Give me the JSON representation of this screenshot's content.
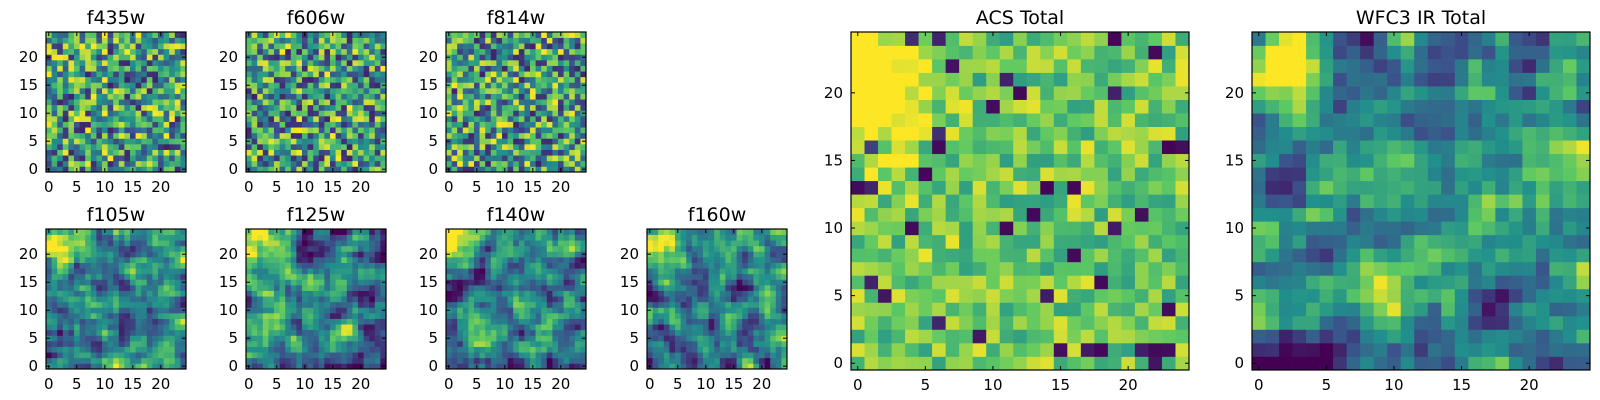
{
  "figure": {
    "colormap": "viridis",
    "colors": [
      "#440154",
      "#3b528b",
      "#21918c",
      "#5ec962",
      "#fde725"
    ]
  },
  "chart_data": [
    {
      "type": "heatmap",
      "title": "f435w",
      "grid_size": [
        25,
        25
      ],
      "value_range": [
        0,
        1
      ],
      "xlim": [
        -0.5,
        24.5
      ],
      "ylim": [
        -0.5,
        24.5
      ],
      "xticks": [
        0,
        5,
        10,
        15,
        20
      ],
      "yticks": [
        0,
        5,
        10,
        15,
        20
      ],
      "xtick_labels": [
        "0",
        "5",
        "10",
        "15",
        "20"
      ],
      "ytick_labels": [
        "0",
        "5",
        "10",
        "15",
        "20"
      ],
      "hotspot": null,
      "texture": "uniform-noise",
      "noise_seed": 11,
      "grid": false
    },
    {
      "type": "heatmap",
      "title": "f606w",
      "grid_size": [
        25,
        25
      ],
      "value_range": [
        0,
        1
      ],
      "xlim": [
        -0.5,
        24.5
      ],
      "ylim": [
        -0.5,
        24.5
      ],
      "xticks": [
        0,
        5,
        10,
        15,
        20
      ],
      "yticks": [
        0,
        5,
        10,
        15,
        20
      ],
      "xtick_labels": [
        "0",
        "5",
        "10",
        "15",
        "20"
      ],
      "ytick_labels": [
        "0",
        "5",
        "10",
        "15",
        "20"
      ],
      "hotspot": null,
      "texture": "uniform-noise",
      "noise_seed": 23,
      "grid": false
    },
    {
      "type": "heatmap",
      "title": "f814w",
      "grid_size": [
        25,
        25
      ],
      "value_range": [
        0,
        1
      ],
      "xlim": [
        -0.5,
        24.5
      ],
      "ylim": [
        -0.5,
        24.5
      ],
      "xticks": [
        0,
        5,
        10,
        15,
        20
      ],
      "yticks": [
        0,
        5,
        10,
        15,
        20
      ],
      "xtick_labels": [
        "0",
        "5",
        "10",
        "15",
        "20"
      ],
      "ytick_labels": [
        "0",
        "5",
        "10",
        "15",
        "20"
      ],
      "hotspot": null,
      "texture": "uniform-noise",
      "noise_seed": 37,
      "grid": false
    },
    {
      "type": "heatmap",
      "title": "f105w",
      "grid_size": [
        25,
        25
      ],
      "value_range": [
        0,
        1
      ],
      "xlim": [
        -0.5,
        24.5
      ],
      "ylim": [
        -0.5,
        24.5
      ],
      "xticks": [
        0,
        5,
        10,
        15,
        20
      ],
      "yticks": [
        0,
        5,
        10,
        15,
        20
      ],
      "xtick_labels": [
        "0",
        "5",
        "10",
        "15",
        "20"
      ],
      "ytick_labels": [
        "0",
        "5",
        "10",
        "15",
        "20"
      ],
      "hotspot": [
        1,
        22
      ],
      "texture": "smooth-noise",
      "noise_seed": 41,
      "grid": false
    },
    {
      "type": "heatmap",
      "title": "f125w",
      "grid_size": [
        25,
        25
      ],
      "value_range": [
        0,
        1
      ],
      "xlim": [
        -0.5,
        24.5
      ],
      "ylim": [
        -0.5,
        24.5
      ],
      "xticks": [
        0,
        5,
        10,
        15,
        20
      ],
      "yticks": [
        0,
        5,
        10,
        15,
        20
      ],
      "xtick_labels": [
        "0",
        "5",
        "10",
        "15",
        "20"
      ],
      "ytick_labels": [
        "0",
        "5",
        "10",
        "15",
        "20"
      ],
      "hotspot": [
        1,
        22
      ],
      "texture": "smooth-noise",
      "noise_seed": 53,
      "grid": false
    },
    {
      "type": "heatmap",
      "title": "f140w",
      "grid_size": [
        25,
        25
      ],
      "value_range": [
        0,
        1
      ],
      "xlim": [
        -0.5,
        24.5
      ],
      "ylim": [
        -0.5,
        24.5
      ],
      "xticks": [
        0,
        5,
        10,
        15,
        20
      ],
      "yticks": [
        0,
        5,
        10,
        15,
        20
      ],
      "xtick_labels": [
        "0",
        "5",
        "10",
        "15",
        "20"
      ],
      "ytick_labels": [
        "0",
        "5",
        "10",
        "15",
        "20"
      ],
      "hotspot": [
        1,
        22
      ],
      "texture": "smooth-noise",
      "noise_seed": 67,
      "grid": false
    },
    {
      "type": "heatmap",
      "title": "f160w",
      "grid_size": [
        25,
        25
      ],
      "value_range": [
        0,
        1
      ],
      "xlim": [
        -0.5,
        24.5
      ],
      "ylim": [
        -0.5,
        24.5
      ],
      "xticks": [
        0,
        5,
        10,
        15,
        20
      ],
      "yticks": [
        0,
        5,
        10,
        15,
        20
      ],
      "xtick_labels": [
        "0",
        "5",
        "10",
        "15",
        "20"
      ],
      "ytick_labels": [
        "0",
        "5",
        "10",
        "15",
        "20"
      ],
      "hotspot": [
        1,
        22
      ],
      "texture": "smooth-noise",
      "noise_seed": 79,
      "grid": false
    },
    {
      "type": "heatmap",
      "title": "ACS Total",
      "grid_size": [
        25,
        25
      ],
      "value_range": [
        0,
        1
      ],
      "xlim": [
        -0.5,
        24.5
      ],
      "ylim": [
        -0.5,
        24.5
      ],
      "xticks": [
        0,
        5,
        10,
        15,
        20
      ],
      "yticks": [
        0,
        5,
        10,
        15,
        20
      ],
      "xtick_labels": [
        "0",
        "5",
        "10",
        "15",
        "20"
      ],
      "ytick_labels": [
        "0",
        "5",
        "10",
        "15",
        "20"
      ],
      "hotspot": [
        1,
        20
      ],
      "texture": "sparse-dark",
      "noise_seed": 83,
      "grid": false
    },
    {
      "type": "heatmap",
      "title": "WFC3 IR Total",
      "grid_size": [
        25,
        25
      ],
      "value_range": [
        0,
        1
      ],
      "xlim": [
        -0.5,
        24.5
      ],
      "ylim": [
        -0.5,
        24.5
      ],
      "xticks": [
        0,
        5,
        10,
        15,
        20
      ],
      "yticks": [
        0,
        5,
        10,
        15,
        20
      ],
      "xtick_labels": [
        "0",
        "5",
        "10",
        "15",
        "20"
      ],
      "ytick_labels": [
        "0",
        "5",
        "10",
        "15",
        "20"
      ],
      "hotspot": [
        1,
        22
      ],
      "texture": "smooth-noise",
      "noise_seed": 97,
      "grid": false
    }
  ]
}
